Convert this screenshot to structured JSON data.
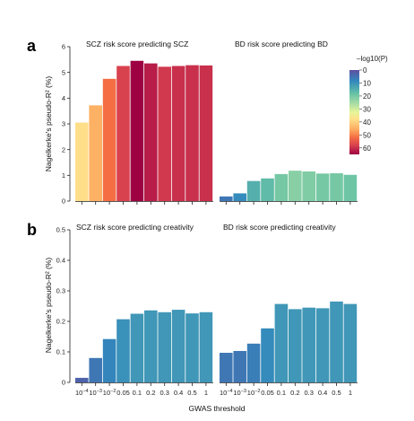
{
  "chart_data": [
    {
      "type": "bar",
      "panel": "a",
      "title": "SCZ risk score predicting SCZ",
      "categories": [
        "10^-4",
        "10^-3",
        "10^-2",
        "0.05",
        "0.1",
        "0.2",
        "0.3",
        "0.4",
        "0.5",
        "1"
      ],
      "values": [
        3.05,
        3.72,
        4.75,
        5.25,
        5.45,
        5.35,
        5.22,
        5.25,
        5.28,
        5.27
      ],
      "neglog10p": [
        38,
        45,
        52,
        58,
        65,
        62,
        59,
        60,
        60,
        60
      ],
      "ylabel": "Nagelkerke's pseudo-R² (%)",
      "ylim": [
        0,
        6
      ],
      "yticks": [
        "0",
        "1",
        "2",
        "3",
        "4",
        "5",
        "6"
      ]
    },
    {
      "type": "bar",
      "panel": "a",
      "title": "BD risk score predicting BD",
      "categories": [
        "10^-4",
        "10^-3",
        "10^-2",
        "0.05",
        "0.1",
        "0.2",
        "0.3",
        "0.4",
        "0.5",
        "1"
      ],
      "values": [
        0.18,
        0.3,
        0.78,
        0.88,
        1.05,
        1.18,
        1.15,
        1.07,
        1.08,
        1.02
      ],
      "neglog10p": [
        6,
        9,
        15,
        17,
        20,
        22,
        21,
        20,
        20,
        19
      ],
      "ylim": [
        0,
        6
      ]
    },
    {
      "type": "bar",
      "panel": "b",
      "title": "SCZ risk score predicting creativity",
      "categories": [
        "10^-4",
        "10^-3",
        "10^-2",
        "0.05",
        "0.1",
        "0.2",
        "0.3",
        "0.4",
        "0.5",
        "1"
      ],
      "values": [
        0.015,
        0.08,
        0.142,
        0.207,
        0.225,
        0.236,
        0.23,
        0.238,
        0.226,
        0.23
      ],
      "neglog10p": [
        3,
        6,
        8,
        10,
        11,
        11,
        11,
        11,
        11,
        11
      ],
      "ylabel": "Nagelkerke's pseudo-R² (%)",
      "ylim": [
        0,
        0.5
      ],
      "yticks": [
        "0",
        "0.1",
        "0.2",
        "0.3",
        "0.4",
        "0.5"
      ]
    },
    {
      "type": "bar",
      "panel": "b",
      "title": "BD risk score predicting creativity",
      "categories": [
        "10^-4",
        "10^-3",
        "10^-2",
        "0.05",
        "0.1",
        "0.2",
        "0.3",
        "0.4",
        "0.5",
        "1"
      ],
      "values": [
        0.097,
        0.103,
        0.127,
        0.177,
        0.257,
        0.24,
        0.245,
        0.243,
        0.265,
        0.257
      ],
      "neglog10p": [
        6,
        6,
        7,
        9,
        11,
        11,
        11,
        11,
        11,
        11
      ],
      "ylim": [
        0,
        0.5
      ]
    }
  ],
  "legend": {
    "title": "–log10(P)",
    "ticks": [
      "0",
      "10",
      "20",
      "30",
      "40",
      "50",
      "60"
    ],
    "colors": [
      "#5e4fa2",
      "#3288bd",
      "#66c2a5",
      "#abdda4",
      "#e6f598",
      "#fee08b",
      "#fdae61",
      "#f46d43",
      "#d53e4f",
      "#9e0142"
    ]
  },
  "xlabel": "GWAS threshold",
  "panel_letters": [
    "a",
    "b"
  ]
}
